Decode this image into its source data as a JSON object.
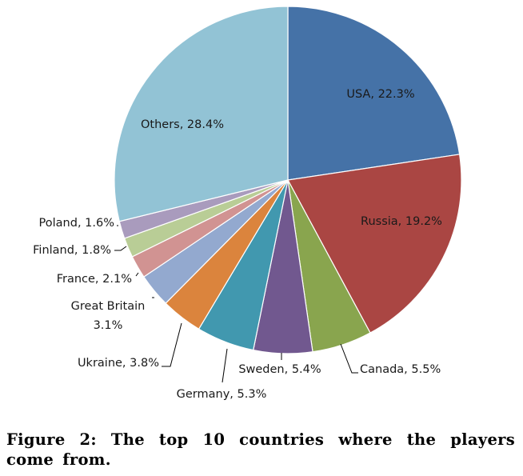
{
  "chart_data": {
    "type": "pie",
    "title": "",
    "slices": [
      {
        "label": "USA",
        "value": 22.3,
        "value_text": "22.3%",
        "color": "#4572a7"
      },
      {
        "label": "Russia",
        "value": 19.2,
        "value_text": "19.2%",
        "color": "#aa4643"
      },
      {
        "label": "Canada",
        "value": 5.5,
        "value_text": "5.5%",
        "color": "#89a54e"
      },
      {
        "label": "Sweden",
        "value": 5.4,
        "value_text": "5.4%",
        "color": "#71588f"
      },
      {
        "label": "Germany",
        "value": 5.3,
        "value_text": "5.3%",
        "color": "#4198af"
      },
      {
        "label": "Ukraine",
        "value": 3.8,
        "value_text": "3.8%",
        "color": "#db843d"
      },
      {
        "label": "Great Britain",
        "value": 3.1,
        "value_text": "3.1%",
        "color": "#93a9cf"
      },
      {
        "label": "France",
        "value": 2.1,
        "value_text": "2.1%",
        "color": "#d19392"
      },
      {
        "label": "Finland",
        "value": 1.8,
        "value_text": "1.8%",
        "color": "#b9cd96"
      },
      {
        "label": "Poland",
        "value": 1.6,
        "value_text": "1.6%",
        "color": "#a99bbd"
      },
      {
        "label": "Others",
        "value": 28.4,
        "value_text": "28.4%",
        "color": "#92c3d5"
      }
    ],
    "start_direction": "12 o'clock",
    "direction": "clockwise",
    "legend": "none"
  },
  "caption": "Figure 2: The top 10 countries where the players come from."
}
